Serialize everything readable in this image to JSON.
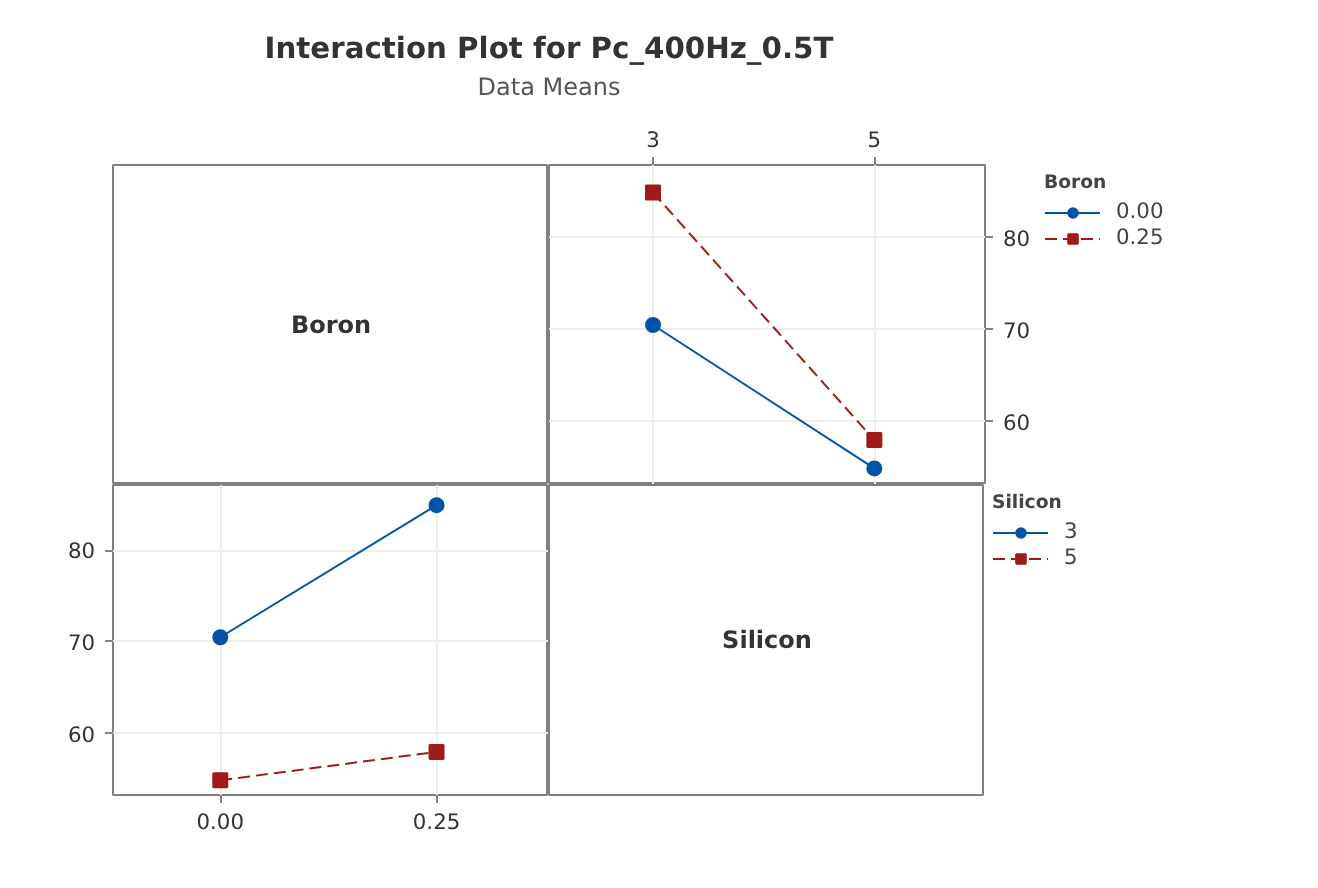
{
  "chart_data": [
    {
      "type": "other",
      "title": "Interaction Plot for Pc_400Hz_0.5T",
      "subtitle": "Data Means",
      "annotations": [
        "Boron"
      ]
    },
    {
      "type": "line",
      "x": [
        3,
        5
      ],
      "xlim": [
        2.06,
        6.0
      ],
      "xticks": [
        3,
        5
      ],
      "ylim": [
        53.1,
        87.9
      ],
      "yticks": [
        60,
        70,
        80
      ],
      "grid": true,
      "legend": "right",
      "legend_title": "Boron",
      "series": [
        {
          "name": "0.00",
          "color": "#0054a6",
          "marker": "circle",
          "line_style": "solid",
          "values": [
            70.5,
            54.9
          ]
        },
        {
          "name": "0.25",
          "color": "#a01a1a",
          "marker": "square",
          "line_style": "dashed",
          "values": [
            84.9,
            58.0
          ]
        }
      ]
    },
    {
      "type": "line",
      "x": [
        0,
        0.25
      ],
      "xlim": [
        -0.124,
        0.38
      ],
      "xticks": [
        {
          "value": 0,
          "label": "0.00"
        },
        {
          "value": 0.25,
          "label": "0.25"
        }
      ],
      "ylim": [
        53.3,
        87.1
      ],
      "yticks": [
        60,
        70,
        80
      ],
      "grid": true,
      "legend": "right",
      "legend_title": "Silicon",
      "series": [
        {
          "name": "3",
          "color": "#0054a6",
          "marker": "circle",
          "line_style": "solid",
          "values": [
            70.5,
            84.9
          ]
        },
        {
          "name": "5",
          "color": "#a01a1a",
          "marker": "square",
          "line_style": "dashed",
          "values": [
            54.9,
            58.0
          ]
        }
      ]
    },
    {
      "type": "other",
      "annotations": [
        "Silicon"
      ]
    }
  ]
}
